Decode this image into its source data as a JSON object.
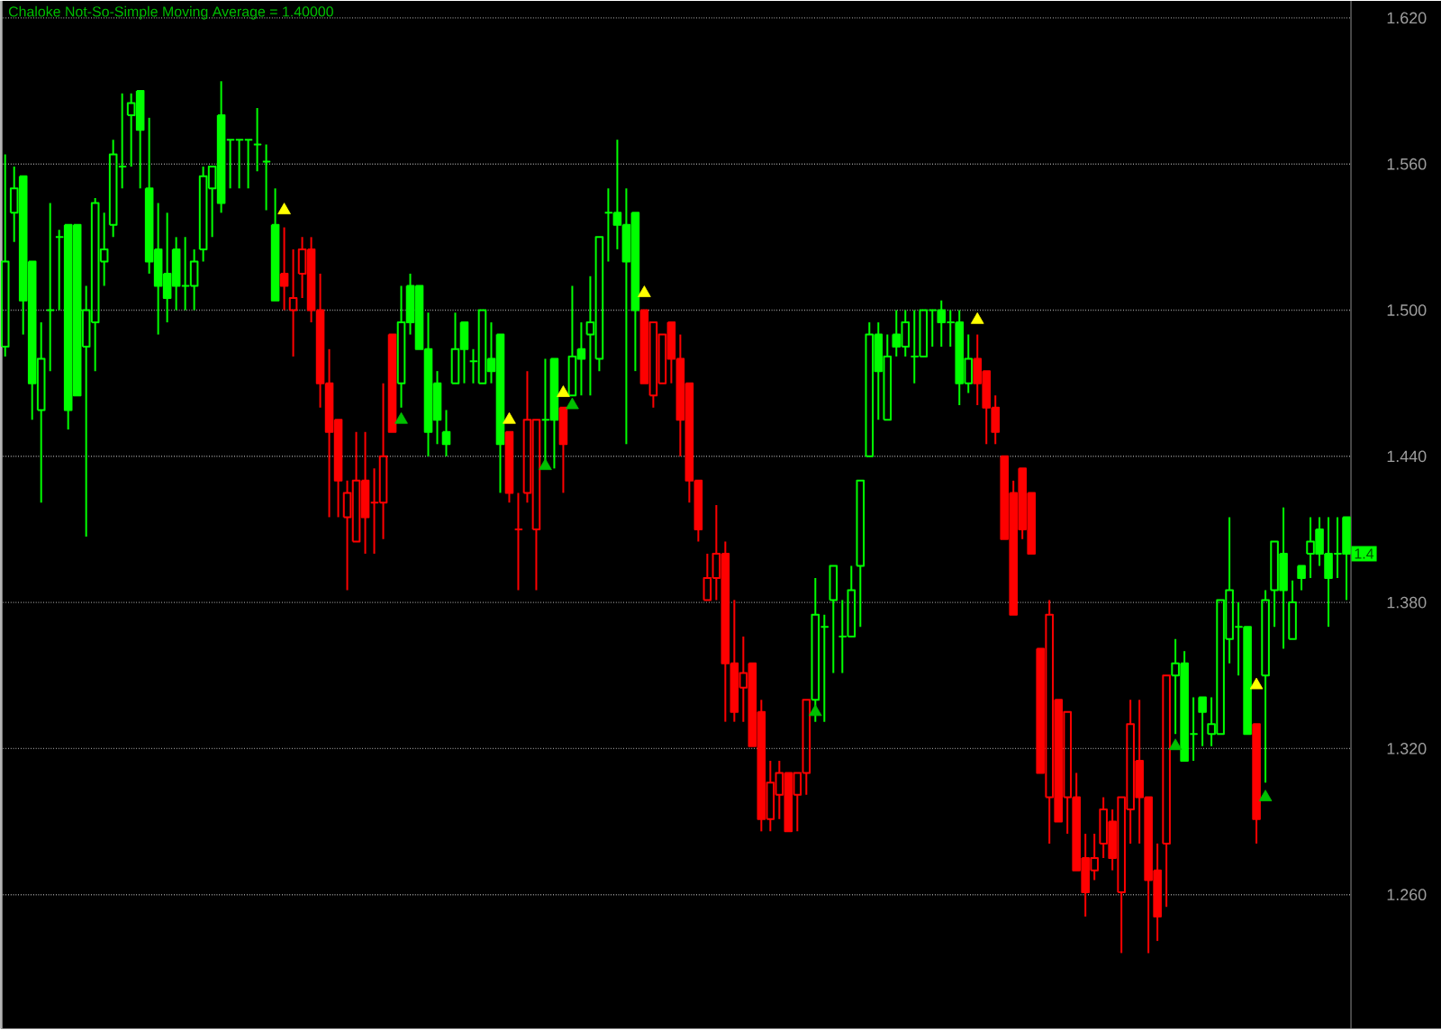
{
  "chart_data": {
    "type": "candlestick",
    "title": "Chaloke Not-So-Simple Moving Average = 1.40000",
    "categories": [
      null,
      null,
      null,
      null,
      null,
      null,
      null,
      null,
      null,
      null,
      null,
      null,
      null,
      null,
      null,
      null,
      null,
      null,
      null,
      null,
      null,
      null,
      null,
      null,
      null,
      null,
      null,
      null,
      null,
      null,
      null,
      null,
      null,
      null,
      null,
      null,
      null,
      null,
      null,
      null,
      null,
      null,
      null,
      null,
      null,
      null,
      null,
      null,
      null,
      null,
      null,
      null,
      null,
      null,
      null,
      null,
      null,
      null,
      null,
      null,
      null,
      null,
      null,
      null,
      null,
      null,
      null,
      null,
      null,
      null,
      null,
      null,
      null,
      null,
      null,
      null,
      null,
      null,
      null,
      null,
      null,
      null,
      null,
      null,
      null,
      null,
      null,
      null,
      null,
      null,
      null,
      null,
      null,
      null,
      null,
      null,
      null,
      null,
      null,
      null,
      null,
      null,
      null,
      null,
      null,
      null,
      null,
      null,
      null,
      null,
      null,
      null,
      null,
      null,
      null,
      null,
      null,
      null,
      null,
      null,
      null,
      null,
      null,
      null,
      null,
      null,
      null,
      null,
      null,
      null,
      null,
      null,
      null,
      null,
      null,
      null,
      null,
      null,
      null,
      null,
      null,
      null,
      null,
      null,
      null,
      null,
      null,
      null,
      null,
      null
    ],
    "ohlc": [
      [
        1.485,
        1.564,
        1.481,
        1.52
      ],
      [
        1.54,
        1.559,
        1.528,
        1.55
      ],
      [
        1.555,
        1.555,
        1.49,
        1.504
      ],
      [
        1.52,
        1.52,
        1.455,
        1.47
      ],
      [
        1.459,
        1.495,
        1.421,
        1.48
      ],
      [
        1.5,
        1.544,
        1.475,
        1.5
      ],
      [
        1.53,
        1.533,
        1.5,
        1.53
      ],
      [
        1.535,
        1.535,
        1.451,
        1.459
      ],
      [
        1.535,
        1.535,
        1.465,
        1.465
      ],
      [
        1.485,
        1.51,
        1.407,
        1.5
      ],
      [
        1.495,
        1.546,
        1.475,
        1.544
      ],
      [
        1.52,
        1.54,
        1.51,
        1.525
      ],
      [
        1.535,
        1.57,
        1.53,
        1.564
      ],
      [
        1.559,
        1.589,
        1.55,
        1.559
      ],
      [
        1.58,
        1.589,
        1.559,
        1.585
      ],
      [
        1.59,
        1.59,
        1.55,
        1.574
      ],
      [
        1.55,
        1.579,
        1.515,
        1.52
      ],
      [
        1.525,
        1.544,
        1.49,
        1.51
      ],
      [
        1.515,
        1.54,
        1.495,
        1.505
      ],
      [
        1.525,
        1.53,
        1.5,
        1.51
      ],
      [
        1.51,
        1.53,
        1.5,
        1.51
      ],
      [
        1.51,
        1.525,
        1.5,
        1.52
      ],
      [
        1.525,
        1.559,
        1.52,
        1.555
      ],
      [
        1.55,
        1.559,
        1.53,
        1.559
      ],
      [
        1.58,
        1.594,
        1.54,
        1.544
      ],
      [
        1.57,
        1.57,
        1.55,
        1.57
      ],
      [
        1.57,
        1.57,
        1.55,
        1.57
      ],
      [
        1.57,
        1.57,
        1.55,
        1.57
      ],
      [
        1.568,
        1.583,
        1.557,
        1.568
      ],
      [
        1.561,
        1.568,
        1.541,
        1.561
      ],
      [
        1.535,
        1.55,
        1.504,
        1.504
      ],
      [
        1.515,
        1.534,
        1.5,
        1.51
      ],
      [
        1.5,
        1.525,
        1.481,
        1.505
      ],
      [
        1.515,
        1.53,
        1.505,
        1.525
      ],
      [
        1.525,
        1.53,
        1.495,
        1.5
      ],
      [
        1.5,
        1.515,
        1.46,
        1.47
      ],
      [
        1.47,
        1.484,
        1.415,
        1.45
      ],
      [
        1.455,
        1.455,
        1.415,
        1.43
      ],
      [
        1.415,
        1.43,
        1.385,
        1.425
      ],
      [
        1.405,
        1.45,
        1.405,
        1.43
      ],
      [
        1.43,
        1.45,
        1.4,
        1.415
      ],
      [
        1.421,
        1.435,
        1.4,
        1.421
      ],
      [
        1.421,
        1.47,
        1.406,
        1.44
      ],
      [
        1.49,
        1.49,
        1.45,
        1.45
      ],
      [
        1.47,
        1.51,
        1.46,
        1.495
      ],
      [
        1.51,
        1.515,
        1.49,
        1.495
      ],
      [
        1.51,
        1.51,
        1.484,
        1.484
      ],
      [
        1.484,
        1.499,
        1.44,
        1.45
      ],
      [
        1.47,
        1.475,
        1.445,
        1.455
      ],
      [
        1.45,
        1.459,
        1.44,
        1.445
      ],
      [
        1.47,
        1.499,
        1.47,
        1.484
      ],
      [
        1.495,
        1.495,
        1.47,
        1.484
      ],
      [
        1.479,
        1.484,
        1.47,
        1.479
      ],
      [
        1.47,
        1.5,
        1.47,
        1.5
      ],
      [
        1.48,
        1.495,
        1.47,
        1.475
      ],
      [
        1.49,
        1.49,
        1.425,
        1.445
      ],
      [
        1.45,
        1.45,
        1.421,
        1.425
      ],
      [
        1.41,
        1.425,
        1.385,
        1.41
      ],
      [
        1.425,
        1.475,
        1.421,
        1.455
      ],
      [
        1.41,
        1.455,
        1.385,
        1.455
      ],
      [
        1.455,
        1.48,
        1.435,
        1.455
      ],
      [
        1.48,
        1.48,
        1.435,
        1.455
      ],
      [
        1.46,
        1.46,
        1.425,
        1.445
      ],
      [
        1.465,
        1.51,
        1.465,
        1.481
      ],
      [
        1.484,
        1.495,
        1.465,
        1.48
      ],
      [
        1.49,
        1.514,
        1.465,
        1.495
      ],
      [
        1.48,
        1.53,
        1.475,
        1.53
      ],
      [
        1.54,
        1.55,
        1.52,
        1.54
      ],
      [
        1.54,
        1.57,
        1.525,
        1.535
      ],
      [
        1.535,
        1.55,
        1.445,
        1.52
      ],
      [
        1.54,
        1.54,
        1.475,
        1.5
      ],
      [
        1.5,
        1.5,
        1.47,
        1.47
      ],
      [
        1.465,
        1.495,
        1.46,
        1.495
      ],
      [
        1.47,
        1.49,
        1.47,
        1.49
      ],
      [
        1.495,
        1.495,
        1.47,
        1.48
      ],
      [
        1.48,
        1.49,
        1.44,
        1.455
      ],
      [
        1.47,
        1.47,
        1.421,
        1.43
      ],
      [
        1.43,
        1.43,
        1.405,
        1.41
      ],
      [
        1.381,
        1.4,
        1.381,
        1.39
      ],
      [
        1.39,
        1.42,
        1.381,
        1.4
      ],
      [
        1.4,
        1.405,
        1.331,
        1.355
      ],
      [
        1.355,
        1.381,
        1.331,
        1.335
      ],
      [
        1.345,
        1.366,
        1.331,
        1.351
      ],
      [
        1.355,
        1.355,
        1.321,
        1.321
      ],
      [
        1.335,
        1.34,
        1.286,
        1.291
      ],
      [
        1.291,
        1.315,
        1.286,
        1.306
      ],
      [
        1.301,
        1.315,
        1.291,
        1.31
      ],
      [
        1.31,
        1.31,
        1.286,
        1.286
      ],
      [
        1.301,
        1.31,
        1.286,
        1.31
      ],
      [
        1.31,
        1.34,
        1.301,
        1.34
      ],
      [
        1.34,
        1.39,
        1.331,
        1.375
      ],
      [
        1.37,
        1.375,
        1.331,
        1.37
      ],
      [
        1.381,
        1.395,
        1.351,
        1.395
      ],
      [
        1.366,
        1.381,
        1.351,
        1.366
      ],
      [
        1.366,
        1.395,
        1.366,
        1.385
      ],
      [
        1.395,
        1.43,
        1.37,
        1.43
      ],
      [
        1.44,
        1.495,
        1.44,
        1.49
      ],
      [
        1.49,
        1.495,
        1.455,
        1.475
      ],
      [
        1.455,
        1.49,
        1.455,
        1.481
      ],
      [
        1.49,
        1.5,
        1.481,
        1.485
      ],
      [
        1.485,
        1.5,
        1.481,
        1.495
      ],
      [
        1.481,
        1.5,
        1.47,
        1.481
      ],
      [
        1.481,
        1.5,
        1.481,
        1.5
      ],
      [
        1.5,
        1.5,
        1.485,
        1.5
      ],
      [
        1.5,
        1.504,
        1.485,
        1.495
      ],
      [
        1.495,
        1.5,
        1.485,
        1.495
      ],
      [
        1.495,
        1.5,
        1.461,
        1.47
      ],
      [
        1.47,
        1.49,
        1.466,
        1.48
      ],
      [
        1.48,
        1.49,
        1.461,
        1.47
      ],
      [
        1.475,
        1.475,
        1.445,
        1.46
      ],
      [
        1.46,
        1.465,
        1.445,
        1.45
      ],
      [
        1.44,
        1.44,
        1.406,
        1.406
      ],
      [
        1.425,
        1.43,
        1.375,
        1.375
      ],
      [
        1.435,
        1.435,
        1.406,
        1.41
      ],
      [
        1.425,
        1.425,
        1.4,
        1.4
      ],
      [
        1.361,
        1.361,
        1.31,
        1.31
      ],
      [
        1.3,
        1.381,
        1.281,
        1.375
      ],
      [
        1.34,
        1.34,
        1.29,
        1.29
      ],
      [
        1.3,
        1.335,
        1.285,
        1.335
      ],
      [
        1.3,
        1.31,
        1.27,
        1.27
      ],
      [
        1.275,
        1.285,
        1.251,
        1.261
      ],
      [
        1.27,
        1.285,
        1.266,
        1.275
      ],
      [
        1.281,
        1.3,
        1.275,
        1.295
      ],
      [
        1.29,
        1.295,
        1.27,
        1.275
      ],
      [
        1.261,
        1.3,
        1.236,
        1.3
      ],
      [
        1.295,
        1.34,
        1.281,
        1.33
      ],
      [
        1.315,
        1.34,
        1.281,
        1.3
      ],
      [
        1.3,
        1.3,
        1.236,
        1.266
      ],
      [
        1.27,
        1.281,
        1.241,
        1.251
      ],
      [
        1.281,
        1.35,
        1.255,
        1.35
      ],
      [
        1.35,
        1.365,
        1.326,
        1.355
      ],
      [
        1.355,
        1.36,
        1.315,
        1.315
      ],
      [
        1.326,
        1.341,
        1.315,
        1.326
      ],
      [
        1.341,
        1.341,
        1.321,
        1.335
      ],
      [
        1.326,
        1.341,
        1.321,
        1.33
      ],
      [
        1.326,
        1.381,
        1.326,
        1.381
      ],
      [
        1.365,
        1.415,
        1.355,
        1.385
      ],
      [
        1.37,
        1.38,
        1.35,
        1.37
      ],
      [
        1.37,
        1.37,
        1.326,
        1.326
      ],
      [
        1.33,
        1.33,
        1.281,
        1.291
      ],
      [
        1.35,
        1.385,
        1.306,
        1.381
      ],
      [
        1.385,
        1.405,
        1.37,
        1.405
      ],
      [
        1.4,
        1.419,
        1.361,
        1.385
      ],
      [
        1.365,
        1.389,
        1.365,
        1.38
      ],
      [
        1.395,
        1.395,
        1.385,
        1.39
      ],
      [
        1.4,
        1.415,
        1.39,
        1.405
      ],
      [
        1.41,
        1.415,
        1.395,
        1.4
      ],
      [
        1.4,
        1.415,
        1.37,
        1.39
      ],
      [
        1.4,
        1.415,
        1.39,
        1.4
      ],
      [
        1.415,
        1.415,
        1.381,
        1.4
      ]
    ],
    "colors": [
      "#00ff00",
      "#00ff00",
      "#00ff00",
      "#00ff00",
      "#00ff00",
      "#00ff00",
      "#00ff00",
      "#00ff00",
      "#00ff00",
      "#00ff00",
      "#00ff00",
      "#00ff00",
      "#00ff00",
      "#00ff00",
      "#00ff00",
      "#00ff00",
      "#00ff00",
      "#00ff00",
      "#00ff00",
      "#00ff00",
      "#00ff00",
      "#00ff00",
      "#00ff00",
      "#00ff00",
      "#00ff00",
      "#00ff00",
      "#00ff00",
      "#00ff00",
      "#00ff00",
      "#00ff00",
      "#00ff00",
      "#ff0000",
      "#ff0000",
      "#ff0000",
      "#ff0000",
      "#ff0000",
      "#ff0000",
      "#ff0000",
      "#ff0000",
      "#ff0000",
      "#ff0000",
      "#ff0000",
      "#ff0000",
      "#ff0000",
      "#00ff00",
      "#00ff00",
      "#00ff00",
      "#00ff00",
      "#00ff00",
      "#00ff00",
      "#00ff00",
      "#00ff00",
      "#00ff00",
      "#00ff00",
      "#00ff00",
      "#00ff00",
      "#ff0000",
      "#ff0000",
      "#ff0000",
      "#ff0000",
      "#00ff00",
      "#00ff00",
      "#ff0000",
      "#00ff00",
      "#00ff00",
      "#00ff00",
      "#00ff00",
      "#00ff00",
      "#00ff00",
      "#00ff00",
      "#00ff00",
      "#ff0000",
      "#ff0000",
      "#ff0000",
      "#ff0000",
      "#ff0000",
      "#ff0000",
      "#ff0000",
      "#ff0000",
      "#ff0000",
      "#ff0000",
      "#ff0000",
      "#ff0000",
      "#ff0000",
      "#ff0000",
      "#ff0000",
      "#ff0000",
      "#ff0000",
      "#ff0000",
      "#ff0000",
      "#00ff00",
      "#00ff00",
      "#00ff00",
      "#00ff00",
      "#00ff00",
      "#00ff00",
      "#00ff00",
      "#00ff00",
      "#00ff00",
      "#00ff00",
      "#00ff00",
      "#00ff00",
      "#00ff00",
      "#00ff00",
      "#00ff00",
      "#00ff00",
      "#00ff00",
      "#00ff00",
      "#ff0000",
      "#ff0000",
      "#ff0000",
      "#ff0000",
      "#ff0000",
      "#ff0000",
      "#ff0000",
      "#ff0000",
      "#ff0000",
      "#ff0000",
      "#ff0000",
      "#ff0000",
      "#ff0000",
      "#ff0000",
      "#ff0000",
      "#ff0000",
      "#ff0000",
      "#ff0000",
      "#ff0000",
      "#ff0000",
      "#ff0000",
      "#ff0000",
      "#00ff00",
      "#00ff00",
      "#00ff00",
      "#00ff00",
      "#00ff00",
      "#00ff00",
      "#00ff00",
      "#00ff00",
      "#00ff00",
      "#ff0000",
      "#00ff00",
      "#00ff00",
      "#00ff00",
      "#00ff00",
      "#00ff00",
      "#00ff00",
      "#00ff00",
      "#00ff00",
      "#00ff00",
      "#00ff00"
    ],
    "series": [
      {
        "type": "scatter",
        "color": "#ffff00",
        "marker": "triangle",
        "values": [
          null,
          null,
          null,
          null,
          null,
          null,
          null,
          null,
          null,
          null,
          null,
          null,
          null,
          null,
          null,
          null,
          null,
          null,
          null,
          null,
          null,
          null,
          null,
          null,
          null,
          null,
          null,
          null,
          null,
          null,
          null,
          1.541,
          null,
          null,
          null,
          null,
          null,
          null,
          null,
          null,
          null,
          null,
          null,
          null,
          null,
          null,
          null,
          null,
          null,
          null,
          null,
          null,
          null,
          null,
          null,
          null,
          1.455,
          null,
          null,
          null,
          null,
          null,
          1.466,
          null,
          null,
          null,
          null,
          null,
          null,
          null,
          null,
          1.507,
          null,
          null,
          null,
          null,
          null,
          null,
          null,
          null,
          null,
          null,
          null,
          null,
          null,
          null,
          null,
          null,
          null,
          null,
          null,
          null,
          null,
          null,
          null,
          null,
          null,
          null,
          null,
          null,
          null,
          null,
          null,
          null,
          null,
          null,
          null,
          null,
          1.496,
          null,
          null,
          null,
          null,
          null,
          null,
          null,
          null,
          null,
          null,
          null,
          null,
          null,
          null,
          null,
          null,
          null,
          null,
          null,
          null,
          null,
          null,
          null,
          null,
          null,
          null,
          null,
          null,
          null,
          null,
          1.346,
          null,
          null,
          null,
          null,
          null,
          null,
          null,
          null,
          null,
          null
        ]
      },
      {
        "type": "scatter",
        "color": "#00c000",
        "marker": "triangle",
        "values": [
          null,
          null,
          null,
          null,
          null,
          null,
          null,
          null,
          null,
          null,
          null,
          null,
          null,
          null,
          null,
          null,
          null,
          null,
          null,
          null,
          null,
          null,
          null,
          null,
          null,
          null,
          null,
          null,
          null,
          null,
          null,
          null,
          null,
          null,
          null,
          null,
          null,
          null,
          null,
          null,
          null,
          null,
          null,
          null,
          1.455,
          null,
          null,
          null,
          null,
          null,
          null,
          null,
          null,
          null,
          null,
          null,
          null,
          null,
          null,
          null,
          1.436,
          null,
          null,
          1.461,
          null,
          null,
          null,
          null,
          null,
          null,
          null,
          null,
          null,
          null,
          null,
          null,
          null,
          null,
          null,
          null,
          null,
          null,
          null,
          null,
          null,
          null,
          null,
          null,
          null,
          null,
          1.335,
          null,
          null,
          null,
          null,
          null,
          null,
          null,
          null,
          null,
          null,
          null,
          null,
          null,
          null,
          null,
          null,
          null,
          null,
          null,
          null,
          null,
          null,
          null,
          null,
          null,
          null,
          null,
          null,
          null,
          null,
          null,
          null,
          null,
          null,
          null,
          null,
          null,
          null,
          null,
          1.321,
          null,
          null,
          null,
          null,
          null,
          null,
          null,
          null,
          null,
          1.3,
          null,
          null,
          null,
          null,
          null,
          null,
          null,
          null,
          null
        ]
      }
    ],
    "ylim": [
      1.205,
      1.627
    ],
    "yticks": [
      {
        "value": 1.26,
        "label": "1.260"
      },
      {
        "value": 1.32,
        "label": "1.320"
      },
      {
        "value": 1.38,
        "label": "1.380"
      },
      {
        "value": 1.44,
        "label": "1.440"
      },
      {
        "value": 1.5,
        "label": "1.500"
      },
      {
        "value": 1.56,
        "label": "1.560"
      },
      {
        "value": 1.62,
        "label": "1.620"
      }
    ],
    "grid": "y",
    "tick_labels": "y",
    "annotations": [
      {
        "text": "1.4",
        "y": 1.4
      }
    ]
  }
}
